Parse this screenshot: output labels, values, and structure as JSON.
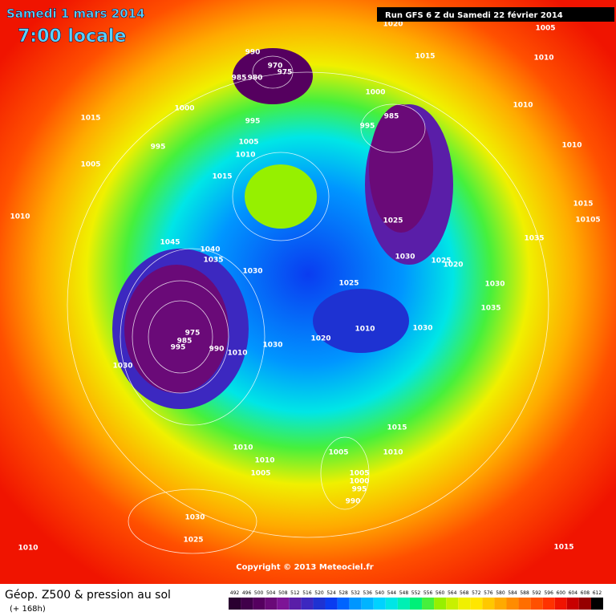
{
  "header": {
    "title": "Samedi 1 mars 2014",
    "time": "7:00 locale",
    "run": "Run GFS 6 Z du Samedi 22 février 2014"
  },
  "map": {
    "copyright": "Copyright © 2013 Meteociel.fr",
    "isobars": [
      "1020",
      "1005",
      "1015",
      "1010",
      "990",
      "970",
      "975",
      "985",
      "980",
      "1000",
      "985",
      "995",
      "1010",
      "1015",
      "1000",
      "995",
      "1005",
      "1010",
      "995",
      "1010",
      "1005",
      "1015",
      "1010",
      "1025",
      "1015",
      "10105",
      "1035",
      "1045",
      "1040",
      "1035",
      "1030",
      "1030",
      "1025",
      "1020",
      "1025",
      "1030",
      "1035",
      "1010",
      "1030",
      "1020",
      "975",
      "985",
      "995",
      "990",
      "1010",
      "1030",
      "1030",
      "1015",
      "1010",
      "1010",
      "1005",
      "1010",
      "1005",
      "1005",
      "1000",
      "995",
      "990",
      "1030",
      "1025",
      "1010",
      "1015"
    ]
  },
  "legend": {
    "title": "Géop. Z500 & pression au sol",
    "lead": "(+ 168h)",
    "values": [
      492,
      496,
      500,
      504,
      508,
      512,
      516,
      520,
      524,
      528,
      532,
      536,
      540,
      544,
      548,
      552,
      556,
      560,
      564,
      568,
      572,
      576,
      580,
      584,
      588,
      592,
      596,
      600,
      604,
      608,
      612
    ],
    "colors": [
      "#2a0030",
      "#40004a",
      "#55005f",
      "#6a0a78",
      "#7d1496",
      "#5a1ea8",
      "#3c28c0",
      "#1e32d2",
      "#0a3cf0",
      "#0064ff",
      "#0096ff",
      "#00b4ff",
      "#00d2ff",
      "#00e6e6",
      "#00f0b4",
      "#00f078",
      "#46f03c",
      "#96f000",
      "#c8f000",
      "#f0f000",
      "#ffe600",
      "#ffc800",
      "#ffaa00",
      "#ff8c00",
      "#ff6e00",
      "#ff5000",
      "#ff3200",
      "#f01400",
      "#c80000",
      "#960000",
      "#000000"
    ]
  }
}
